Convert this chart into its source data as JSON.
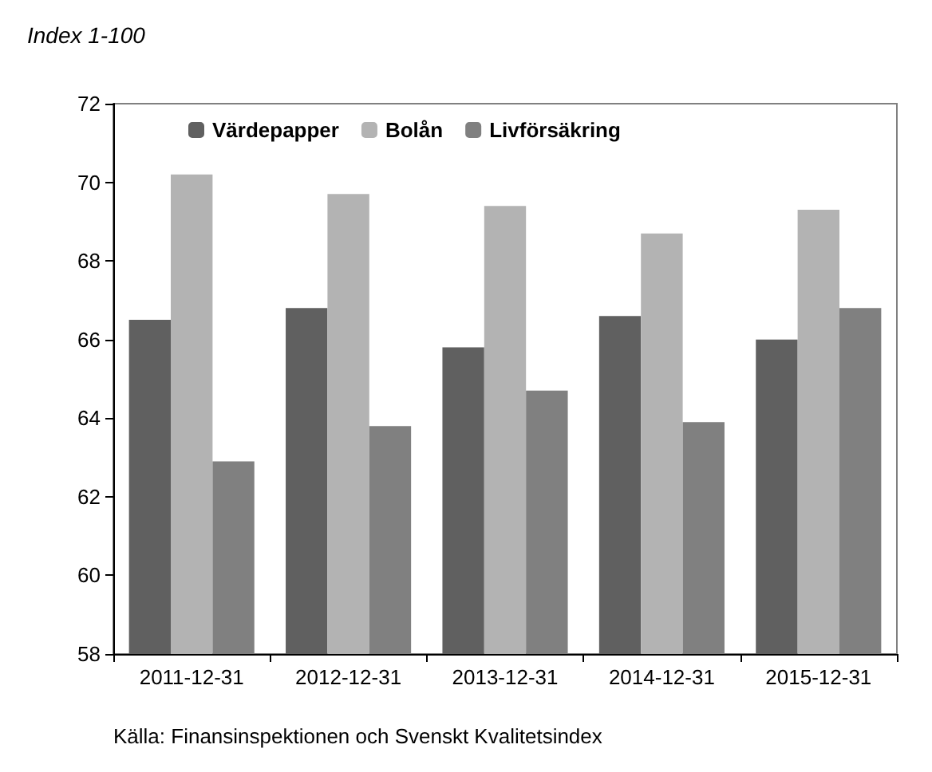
{
  "chart_data": {
    "type": "bar",
    "title": "Index 1-100",
    "categories": [
      "2011-12-31",
      "2012-12-31",
      "2013-12-31",
      "2014-12-31",
      "2015-12-31"
    ],
    "series": [
      {
        "name": "Värdepapper",
        "color": "#606060",
        "values": [
          66.5,
          66.8,
          65.8,
          66.6,
          66.0
        ]
      },
      {
        "name": "Bolån",
        "color": "#b3b3b3",
        "values": [
          70.2,
          69.7,
          69.4,
          68.7,
          69.3
        ]
      },
      {
        "name": "Livförsäkring",
        "color": "#808080",
        "values": [
          62.9,
          63.8,
          64.7,
          63.9,
          66.8
        ]
      }
    ],
    "ylim": [
      58,
      72
    ],
    "yticks": [
      58,
      60,
      62,
      64,
      66,
      68,
      70,
      72
    ],
    "grid": false,
    "legend": "top left",
    "annotations": [
      "Källa: Finansinspektionen och Svenskt Kvalitetsindex"
    ]
  }
}
